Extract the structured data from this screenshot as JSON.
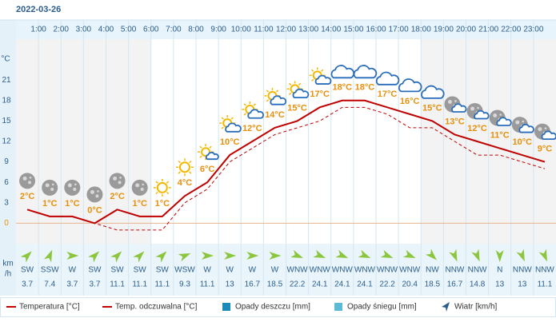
{
  "date": "2022-03-26",
  "chart_data": {
    "type": "line",
    "y_unit": "°C",
    "hour_ticks": [
      "1:00",
      "2:00",
      "3:00",
      "4:00",
      "5:00",
      "6:00",
      "7:00",
      "8:00",
      "9:00",
      "10:00",
      "11:00",
      "12:00",
      "13:00",
      "14:00",
      "15:00",
      "16:00",
      "17:00",
      "18:00",
      "19:00",
      "20:00",
      "21:00",
      "22:00",
      "23:00"
    ],
    "ylim": [
      -3,
      27
    ],
    "yticks": [
      0,
      3,
      6,
      9,
      12,
      15,
      18,
      21
    ],
    "series": [
      {
        "name": "Temperatura [°C]",
        "color": "#c00000",
        "values": [
          2,
          1,
          1,
          0,
          2,
          1,
          1,
          4,
          6,
          10,
          12,
          14,
          15,
          17,
          18,
          18,
          17,
          16,
          15,
          13,
          12,
          11,
          10,
          9
        ],
        "value_labels": [
          "2°C",
          "1°C",
          "1°C",
          "0°C",
          "2°C",
          "1°C",
          "1°C",
          "4°C",
          "6°C",
          "10°C",
          "12°C",
          "14°C",
          "15°C",
          "17°C",
          "18°C",
          "18°C",
          "17°C",
          "16°C",
          "15°C",
          "13°C",
          "12°C",
          "11°C",
          "10°C",
          "9°C"
        ]
      },
      {
        "name": "Temp. odczuwalna [°C]",
        "color": "#c00000",
        "values": [
          2,
          1,
          1,
          0,
          -1,
          -1,
          -1,
          3,
          5,
          9,
          11,
          13,
          14,
          15,
          17,
          17,
          16,
          14,
          14,
          12,
          10,
          10,
          9,
          8
        ]
      }
    ],
    "wind_unit_lines": [
      "km",
      "/h"
    ],
    "wind_directions": [
      "SW",
      "SSW",
      "W",
      "SW",
      "SW",
      "SW",
      "SW",
      "WSW",
      "W",
      "W",
      "W",
      "W",
      "WNW",
      "WNW",
      "WNW",
      "WNW",
      "WNW",
      "WNW",
      "NW",
      "NNW",
      "NNW",
      "N",
      "NNW",
      "NNW"
    ],
    "wind_speeds": [
      3.7,
      7.4,
      3.7,
      3.7,
      11.1,
      11.1,
      11.1,
      9.3,
      11.1,
      13,
      16.7,
      18.5,
      22.2,
      24.1,
      24.1,
      24.1,
      22.2,
      20.4,
      18.5,
      16.7,
      14.8,
      13,
      13,
      11.1
    ],
    "legend": [
      "Temperatura [°C]",
      "Temp. odczuwalna [°C]",
      "Opady deszczu [mm]",
      "Opady śniegu [mm]",
      "Wiatr [km/h]"
    ]
  }
}
